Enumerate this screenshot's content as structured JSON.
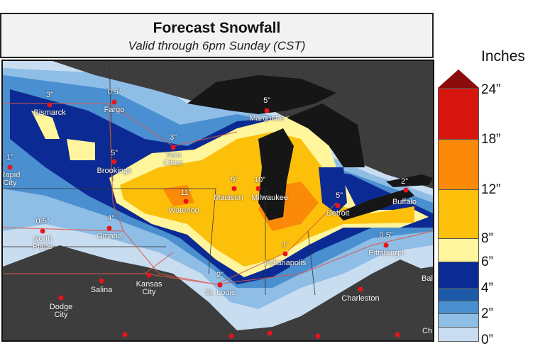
{
  "header": {
    "title": "Forecast Snowfall",
    "subtitle": "Valid through 6pm Sunday (CST)"
  },
  "legend": {
    "title": "Inches",
    "ticks": [
      "24”",
      "18”",
      "12”",
      "8”",
      "6”",
      "4”",
      "2”",
      "0”"
    ],
    "colors": {
      "over_24": "#8b0c0c",
      "18_24": "#d7170f",
      "12_18": "#fb8a08",
      "8_12": "#fdc00a",
      "6_8": "#fef59c",
      "4_6": "#0c2a93",
      "3_4": "#1d5ba8",
      "2_3": "#4a8fcf",
      "1_2": "#8ebde6",
      "0_1": "#c9ddf1"
    }
  },
  "cities": [
    {
      "name": "Bismarck",
      "amount": "3”"
    },
    {
      "name": "Fargo",
      "amount": "0.5”"
    },
    {
      "name": "Marquette",
      "amount": "5”"
    },
    {
      "name": "Twin Cities",
      "amount": "3”"
    },
    {
      "name": "Brookings",
      "amount": "5”"
    },
    {
      "name": "Rapid City",
      "amount": "1”"
    },
    {
      "name": "Madison",
      "amount": "9”"
    },
    {
      "name": "Milwaukee",
      "amount": "10”"
    },
    {
      "name": "Waterloo",
      "amount": "11”"
    },
    {
      "name": "Detroit",
      "amount": "5”"
    },
    {
      "name": "Buffalo",
      "amount": "2”"
    },
    {
      "name": "Omaha",
      "amount": "4”"
    },
    {
      "name": "North Platte",
      "amount": "0.5”"
    },
    {
      "name": "Pittsburgh",
      "amount": "0.5”"
    },
    {
      "name": "Indianapolis",
      "amount": "1”"
    },
    {
      "name": "Salina",
      "amount": ""
    },
    {
      "name": "Kansas City",
      "amount": ""
    },
    {
      "name": "St. Louis",
      "amount": "2”"
    },
    {
      "name": "Charleston",
      "amount": ""
    },
    {
      "name": "Dodge City",
      "amount": ""
    },
    {
      "name": "Bal",
      "amount": ""
    },
    {
      "name": "Ch",
      "amount": ""
    }
  ]
}
